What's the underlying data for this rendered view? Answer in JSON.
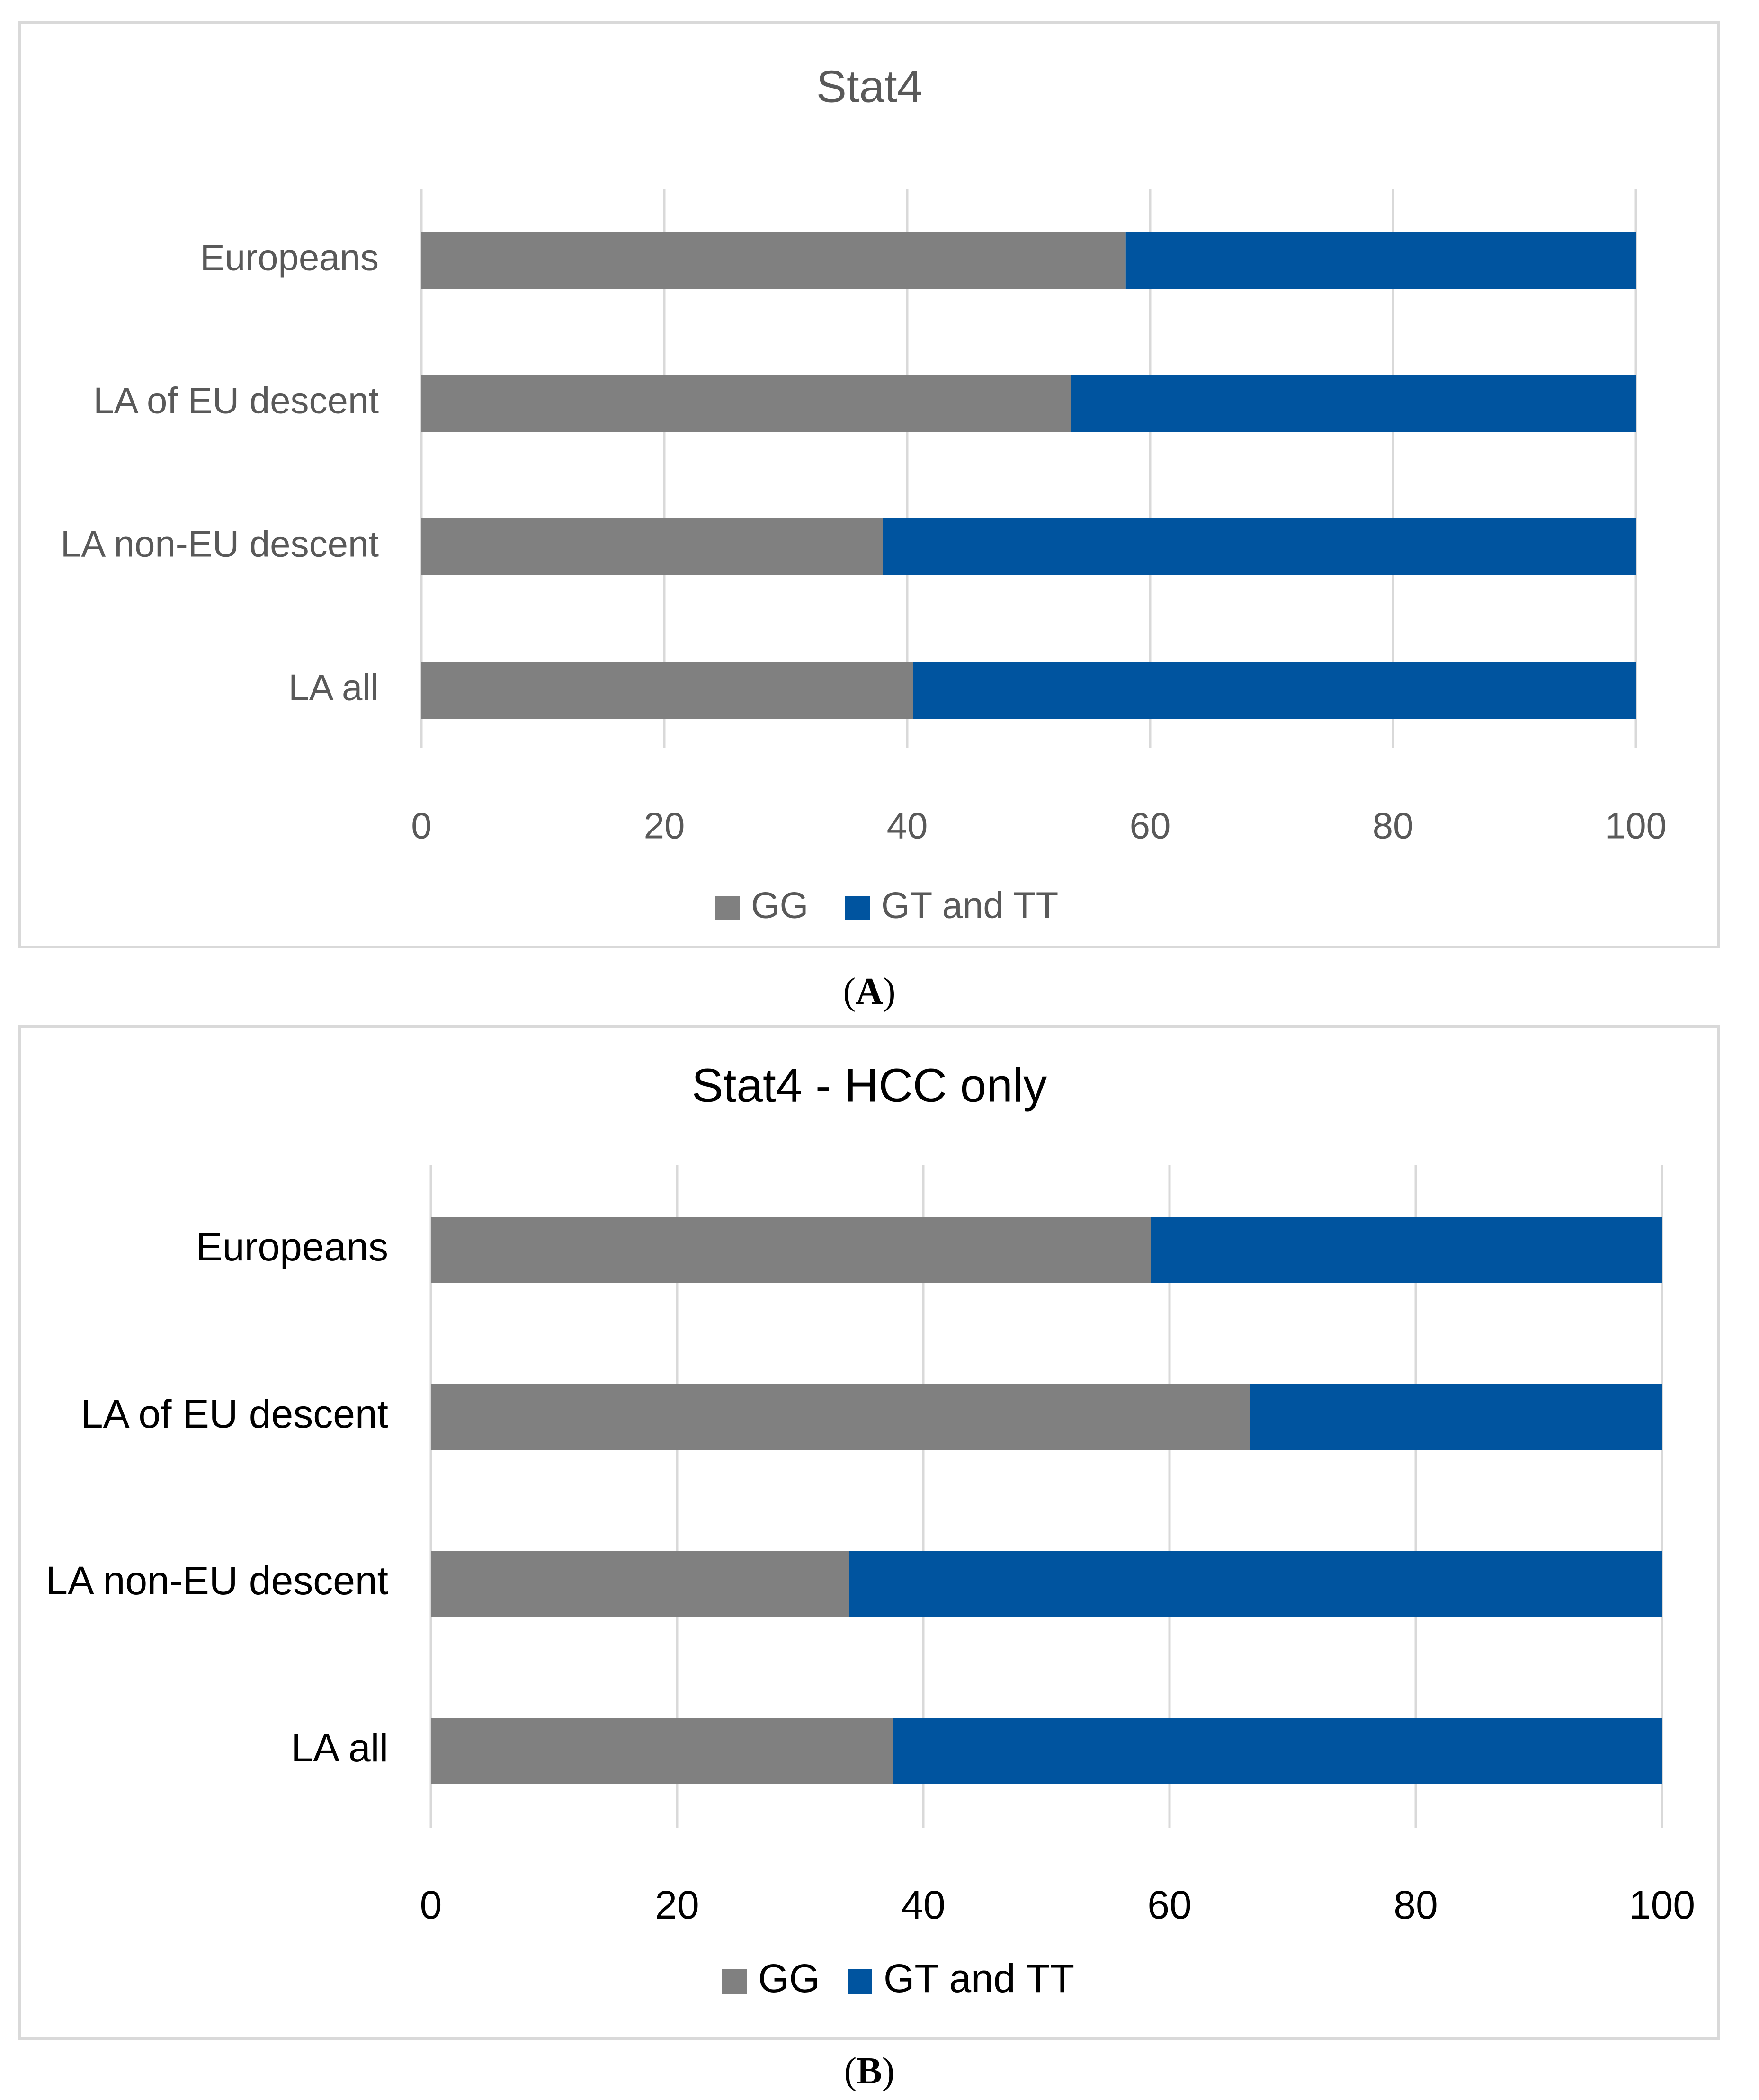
{
  "chart_data": [
    {
      "type": "bar",
      "orientation": "horizontal",
      "stacked": true,
      "title": "Stat4",
      "panel_label": "A",
      "categories": [
        "Europeans",
        "LA of EU descent",
        "LA non-EU descent",
        "LA all"
      ],
      "series": [
        {
          "name": "GG",
          "color": "#808080",
          "values": [
            58,
            53.5,
            38,
            40.5
          ]
        },
        {
          "name": "GT and TT",
          "color": "#00549f",
          "values": [
            42,
            46.5,
            62,
            59.5
          ]
        }
      ],
      "xticks": [
        "0",
        "20",
        "40",
        "60",
        "80",
        "100"
      ],
      "xlim": [
        0,
        100
      ],
      "grid": true,
      "legend_position": "bottom"
    },
    {
      "type": "bar",
      "orientation": "horizontal",
      "stacked": true,
      "title": "Stat4 - HCC only",
      "panel_label": "B",
      "categories": [
        "Europeans",
        "LA of EU descent",
        "LA non-EU descent",
        "LA all"
      ],
      "series": [
        {
          "name": "GG",
          "color": "#808080",
          "values": [
            58.5,
            66.5,
            34,
            37.5
          ]
        },
        {
          "name": "GT and TT",
          "color": "#00549f",
          "values": [
            41.5,
            33.5,
            66,
            62.5
          ]
        }
      ],
      "xticks": [
        "0",
        "20",
        "40",
        "60",
        "80",
        "100"
      ],
      "xlim": [
        0,
        100
      ],
      "grid": true,
      "legend_position": "bottom"
    }
  ]
}
